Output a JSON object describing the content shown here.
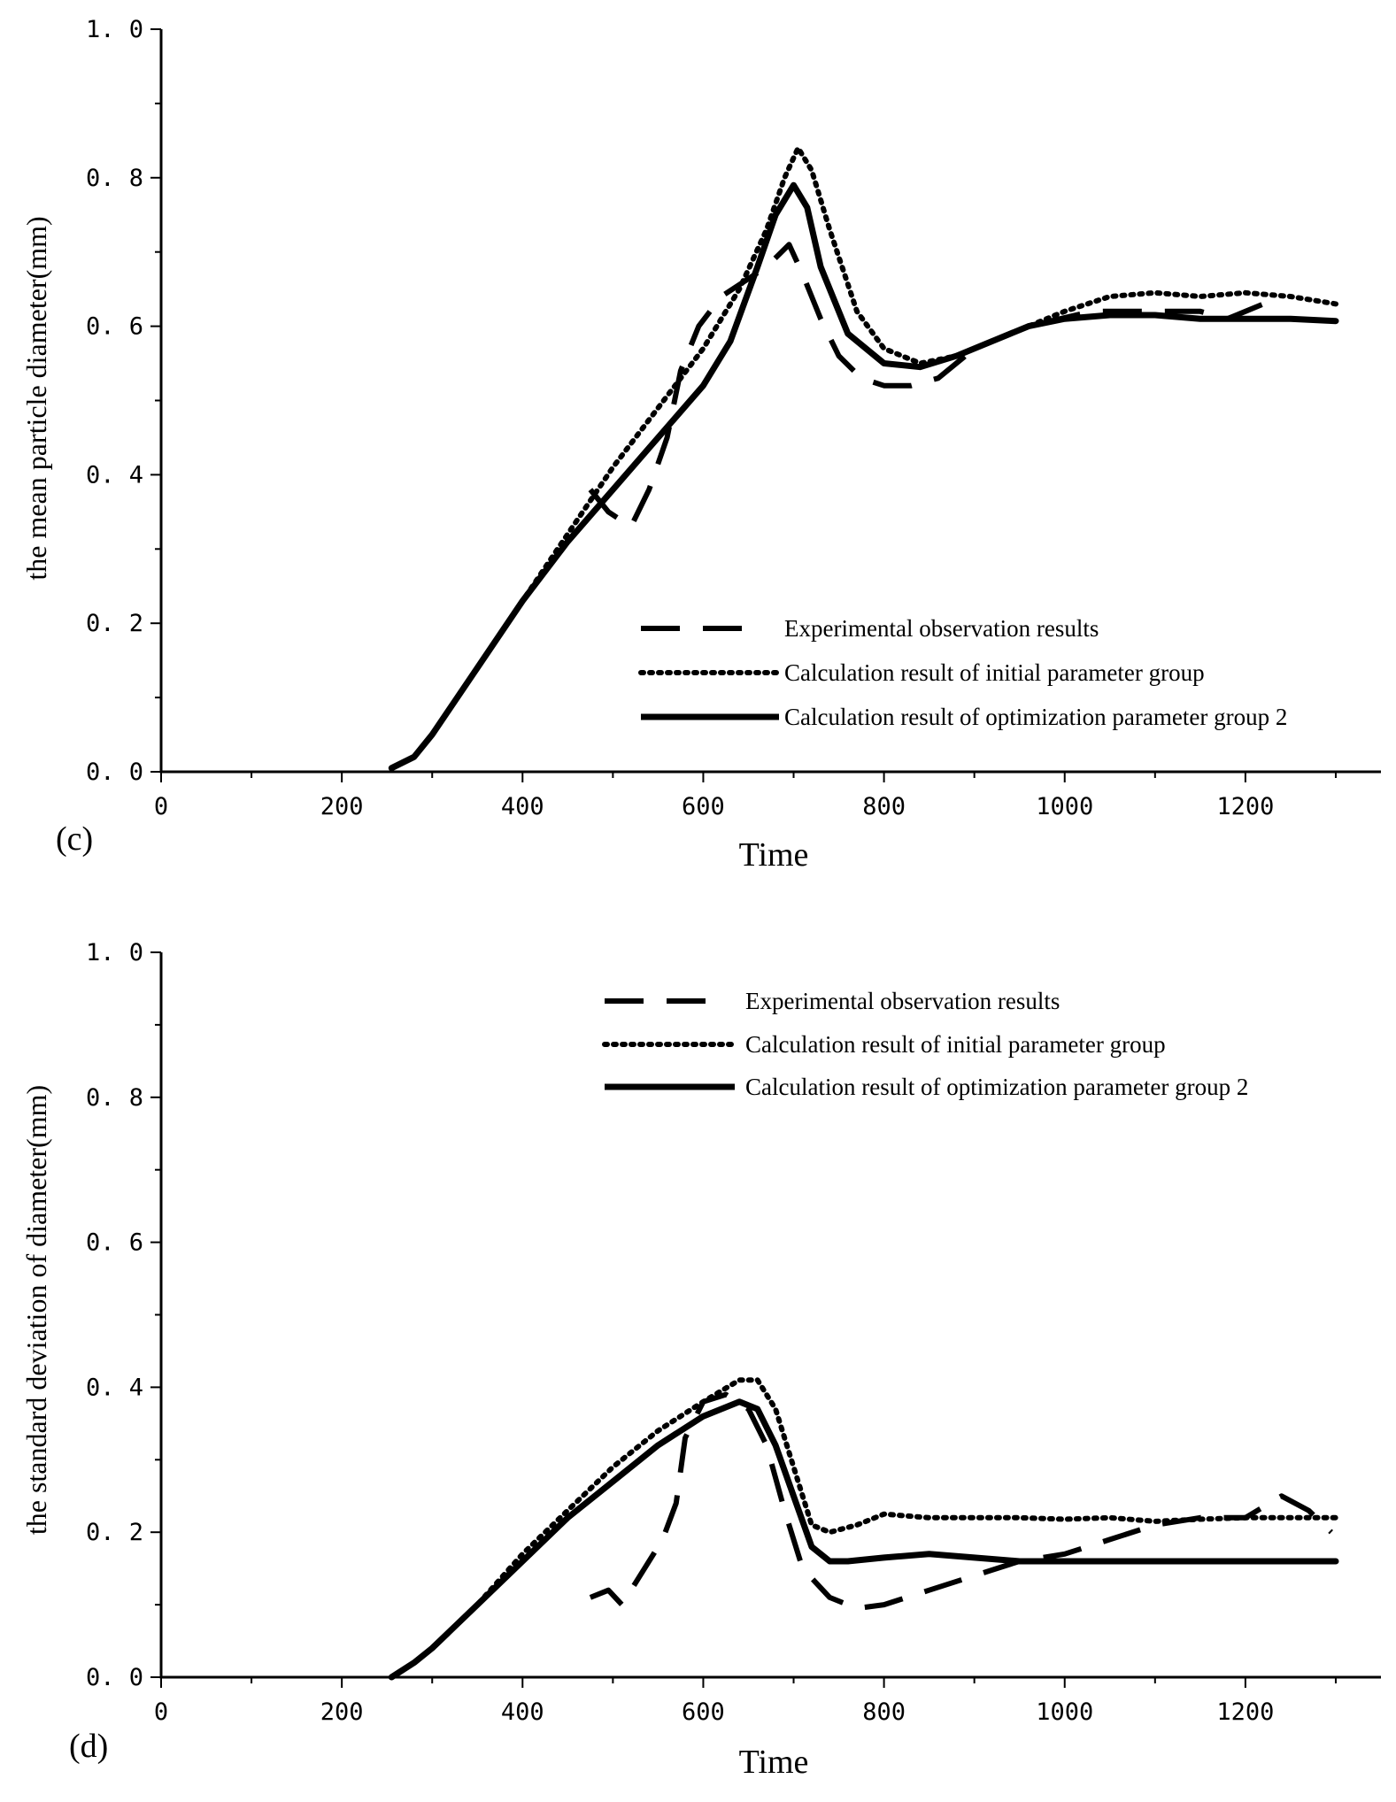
{
  "chart_data": [
    {
      "type": "line",
      "panel_label": "(c)",
      "xlabel": "Time",
      "ylabel": "the mean particle diameter(mm)",
      "xlim": [
        0,
        1350
      ],
      "ylim": [
        0,
        1.0
      ],
      "x_ticks": [
        0,
        200,
        400,
        600,
        800,
        1000,
        1200
      ],
      "x_tick_labels": [
        "0",
        "200",
        "400",
        "600",
        "800",
        "1000",
        "1200"
      ],
      "y_ticks": [
        0,
        0.2,
        0.4,
        0.6,
        0.8,
        1.0
      ],
      "y_tick_labels": [
        "0. 0",
        "0. 2",
        "0. 4",
        "0. 6",
        "0. 8",
        "1. 0"
      ],
      "legend_position": "bottom-right",
      "series": [
        {
          "name": "Experimental observation results",
          "style": "dashed",
          "x": [
            475,
            495,
            520,
            540,
            560,
            575,
            595,
            620,
            645,
            670,
            695,
            710,
            730,
            750,
            775,
            800,
            830,
            860,
            900,
            960,
            1030,
            1080,
            1110,
            1150,
            1180,
            1200,
            1240
          ],
          "y": [
            0.38,
            0.35,
            0.33,
            0.38,
            0.45,
            0.54,
            0.6,
            0.64,
            0.66,
            0.68,
            0.71,
            0.67,
            0.61,
            0.56,
            0.53,
            0.52,
            0.52,
            0.53,
            0.57,
            0.6,
            0.62,
            0.62,
            0.62,
            0.62,
            0.61,
            0.62,
            0.64
          ]
        },
        {
          "name": "Calculation result of initial parameter group",
          "style": "dotted",
          "x": [
            255,
            280,
            300,
            350,
            400,
            450,
            500,
            550,
            600,
            640,
            670,
            690,
            705,
            720,
            740,
            770,
            800,
            840,
            880,
            920,
            960,
            1000,
            1050,
            1100,
            1150,
            1200,
            1250,
            1300
          ],
          "y": [
            0.005,
            0.02,
            0.05,
            0.14,
            0.23,
            0.32,
            0.41,
            0.49,
            0.57,
            0.65,
            0.73,
            0.8,
            0.84,
            0.81,
            0.73,
            0.62,
            0.57,
            0.55,
            0.56,
            0.58,
            0.6,
            0.62,
            0.64,
            0.645,
            0.64,
            0.645,
            0.64,
            0.63
          ]
        },
        {
          "name": "Calculation result of optimization parameter group 2",
          "style": "solid",
          "x": [
            255,
            280,
            300,
            350,
            400,
            450,
            500,
            550,
            600,
            630,
            660,
            680,
            700,
            715,
            730,
            760,
            800,
            840,
            880,
            920,
            960,
            1000,
            1050,
            1100,
            1150,
            1200,
            1250,
            1300
          ],
          "y": [
            0.005,
            0.02,
            0.05,
            0.14,
            0.23,
            0.31,
            0.38,
            0.45,
            0.52,
            0.58,
            0.68,
            0.75,
            0.79,
            0.76,
            0.68,
            0.59,
            0.55,
            0.545,
            0.56,
            0.58,
            0.6,
            0.61,
            0.615,
            0.615,
            0.61,
            0.61,
            0.61,
            0.607
          ]
        }
      ]
    },
    {
      "type": "line",
      "panel_label": "(d)",
      "xlabel": "Time",
      "ylabel": "the standard deviation of diameter(mm)",
      "xlim": [
        0,
        1350
      ],
      "ylim": [
        0,
        1.0
      ],
      "x_ticks": [
        0,
        200,
        400,
        600,
        800,
        1000,
        1200
      ],
      "x_tick_labels": [
        "0",
        "200",
        "400",
        "600",
        "800",
        "1000",
        "1200"
      ],
      "y_ticks": [
        0,
        0.2,
        0.4,
        0.6,
        0.8,
        1.0
      ],
      "y_tick_labels": [
        "0. 0",
        "0. 2",
        "0. 4",
        "0. 6",
        "0. 8",
        "1. 0"
      ],
      "legend_position": "top-right",
      "series": [
        {
          "name": "Experimental observation results",
          "style": "dashed",
          "x": [
            475,
            495,
            510,
            530,
            555,
            570,
            580,
            600,
            625,
            650,
            670,
            690,
            710,
            740,
            770,
            800,
            850,
            900,
            950,
            1000,
            1050,
            1100,
            1150,
            1200,
            1240,
            1270,
            1295
          ],
          "y": [
            0.11,
            0.12,
            0.1,
            0.14,
            0.19,
            0.24,
            0.33,
            0.38,
            0.39,
            0.37,
            0.32,
            0.23,
            0.15,
            0.11,
            0.095,
            0.1,
            0.12,
            0.14,
            0.16,
            0.17,
            0.19,
            0.21,
            0.22,
            0.22,
            0.25,
            0.23,
            0.2
          ]
        },
        {
          "name": "Calculation result of initial parameter group",
          "style": "dotted",
          "x": [
            255,
            280,
            300,
            350,
            400,
            450,
            500,
            550,
            600,
            640,
            660,
            680,
            700,
            720,
            740,
            770,
            800,
            850,
            900,
            950,
            1000,
            1050,
            1100,
            1150,
            1200,
            1250,
            1300
          ],
          "y": [
            0.0,
            0.02,
            0.04,
            0.1,
            0.17,
            0.23,
            0.29,
            0.34,
            0.38,
            0.41,
            0.41,
            0.37,
            0.29,
            0.21,
            0.2,
            0.21,
            0.225,
            0.22,
            0.22,
            0.22,
            0.218,
            0.22,
            0.215,
            0.218,
            0.22,
            0.22,
            0.22
          ]
        },
        {
          "name": "Calculation result of optimization parameter group 2",
          "style": "solid",
          "x": [
            255,
            280,
            300,
            350,
            400,
            450,
            500,
            550,
            600,
            640,
            660,
            680,
            700,
            720,
            740,
            760,
            800,
            850,
            900,
            950,
            1000,
            1050,
            1100,
            1150,
            1200,
            1250,
            1300
          ],
          "y": [
            0.0,
            0.02,
            0.04,
            0.1,
            0.16,
            0.22,
            0.27,
            0.32,
            0.36,
            0.38,
            0.37,
            0.32,
            0.25,
            0.18,
            0.16,
            0.16,
            0.165,
            0.17,
            0.165,
            0.16,
            0.16,
            0.16,
            0.16,
            0.16,
            0.16,
            0.16,
            0.16
          ]
        }
      ]
    }
  ]
}
